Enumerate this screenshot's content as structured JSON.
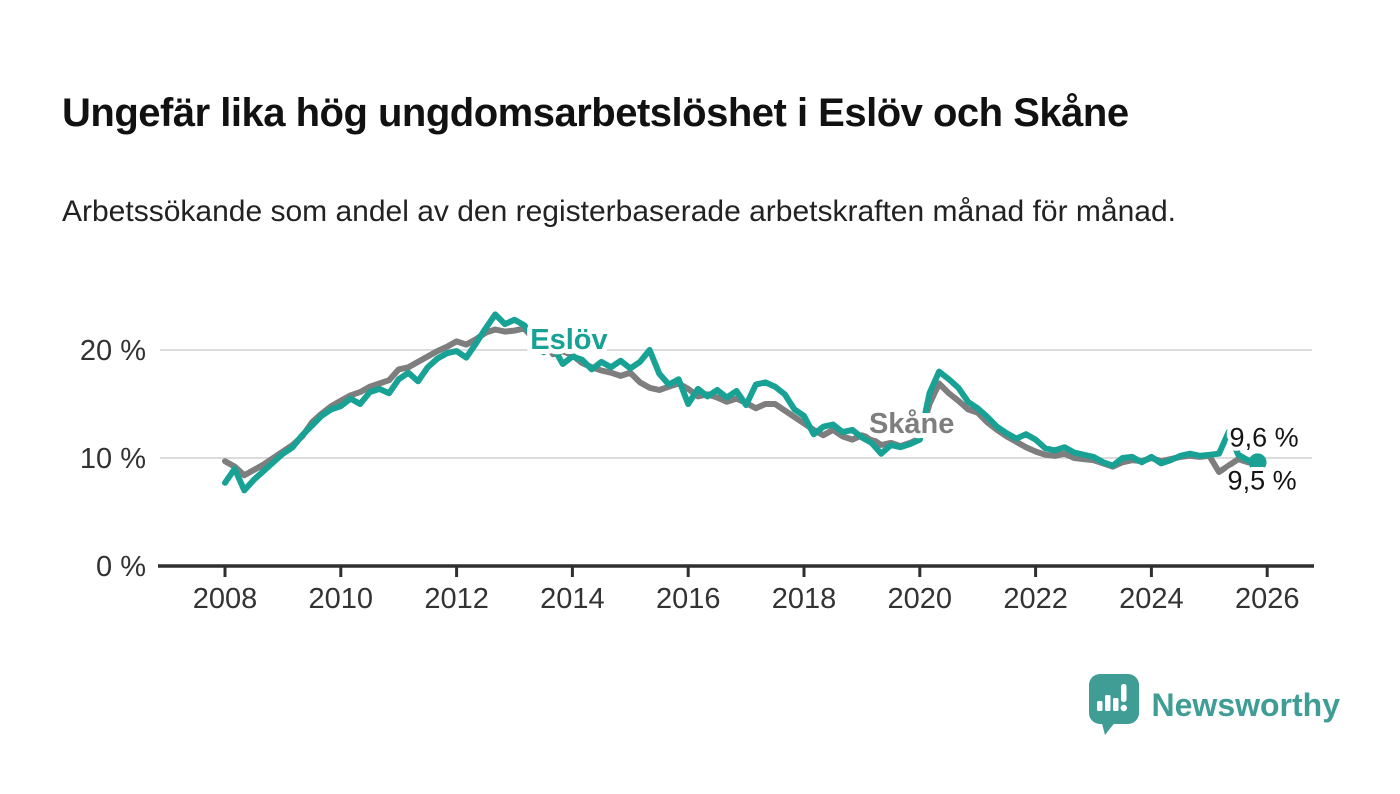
{
  "title": "Ungefär lika hög ungdomsarbetslöshet i Eslöv och Skåne",
  "subtitle": "Arbetssökande som andel av den registerbaserade arbetskraften månad för månad.",
  "footer": {
    "brand": "Newsworthy",
    "logo_icon": "newsworthy-bar-chart-speech-bubble-icon"
  },
  "colors": {
    "eslov": "#18a295",
    "skane": "#7e7e7e",
    "grid": "#dcdcdc",
    "axis": "#2f2f2f",
    "tick_text": "#333333",
    "brand": "#3f9d96"
  },
  "chart_data": {
    "type": "line",
    "x_start": 2008.0,
    "x_step": 0.166667,
    "xlabel": "",
    "ylabel": "",
    "xlim": [
      2006.9,
      2026.8
    ],
    "ylim": [
      0,
      25
    ],
    "grid": "horizontal",
    "xticks": [
      2008,
      2010,
      2012,
      2014,
      2016,
      2018,
      2020,
      2022,
      2024,
      2026
    ],
    "yticks": [
      {
        "value": 0,
        "label": "0 %"
      },
      {
        "value": 10,
        "label": "10 %"
      },
      {
        "value": 20,
        "label": "20 %"
      }
    ],
    "series": [
      {
        "name": "Eslöv",
        "color_key": "eslov",
        "end_label": "9,6 %",
        "end_dot": true,
        "values": [
          7.7,
          9.0,
          7.0,
          8.0,
          8.8,
          9.6,
          10.4,
          11.0,
          12.1,
          13.0,
          13.9,
          14.5,
          14.8,
          15.5,
          15.0,
          16.1,
          16.4,
          16.0,
          17.3,
          17.9,
          17.1,
          18.4,
          19.2,
          19.7,
          19.9,
          19.3,
          20.6,
          22.0,
          23.3,
          22.4,
          22.8,
          22.3,
          21.1,
          19.8,
          20.3,
          18.7,
          19.4,
          19.1,
          18.2,
          18.9,
          18.4,
          19.0,
          18.3,
          18.9,
          20.0,
          17.8,
          16.8,
          17.3,
          15.0,
          16.4,
          15.7,
          16.3,
          15.6,
          16.2,
          14.9,
          16.8,
          17.0,
          16.6,
          15.9,
          14.5,
          13.9,
          12.2,
          12.9,
          13.1,
          12.4,
          12.6,
          11.9,
          11.4,
          10.4,
          11.2,
          11.0,
          11.3,
          11.7,
          16.0,
          18.0,
          17.3,
          16.5,
          15.2,
          14.6,
          13.8,
          12.9,
          12.3,
          11.8,
          12.2,
          11.7,
          10.9,
          10.7,
          11.0,
          10.5,
          10.3,
          10.1,
          9.6,
          9.3,
          10.0,
          10.1,
          9.6,
          10.1,
          9.5,
          9.8,
          10.2,
          10.4,
          10.2,
          10.3,
          10.4,
          12.4,
          10.3,
          9.8,
          9.6
        ]
      },
      {
        "name": "Skåne",
        "color_key": "skane",
        "end_label": "9,5 %",
        "end_dot": false,
        "values": [
          9.7,
          9.2,
          8.4,
          8.9,
          9.4,
          10.0,
          10.6,
          11.2,
          12.0,
          13.3,
          14.1,
          14.8,
          15.3,
          15.8,
          16.1,
          16.6,
          16.9,
          17.2,
          18.2,
          18.4,
          18.9,
          19.4,
          19.9,
          20.3,
          20.8,
          20.5,
          21.0,
          21.6,
          21.9,
          21.7,
          21.8,
          22.0,
          21.0,
          20.9,
          19.6,
          19.9,
          19.5,
          18.8,
          18.4,
          18.1,
          17.9,
          17.6,
          17.9,
          17.0,
          16.5,
          16.3,
          16.6,
          16.9,
          16.4,
          15.7,
          15.9,
          15.6,
          15.2,
          15.5,
          15.1,
          14.6,
          15.0,
          15.0,
          14.4,
          13.8,
          13.2,
          12.6,
          12.1,
          12.6,
          12.0,
          11.7,
          12.1,
          11.8,
          11.2,
          11.4,
          11.1,
          11.4,
          11.8,
          15.0,
          16.9,
          16.0,
          15.3,
          14.5,
          14.2,
          13.3,
          12.6,
          12.0,
          11.5,
          11.0,
          10.6,
          10.3,
          10.2,
          10.4,
          10.0,
          9.9,
          9.8,
          9.5,
          9.2,
          9.6,
          9.8,
          9.7,
          10.0,
          9.7,
          9.9,
          10.1,
          10.2,
          10.1,
          10.2,
          8.7,
          9.3,
          9.9,
          9.6,
          9.5
        ]
      }
    ],
    "annotations": [
      {
        "text": "Eslöv",
        "x": 2013.94,
        "y": 20.1,
        "color_key": "eslov"
      },
      {
        "text": "Skåne",
        "x": 2019.86,
        "y": 12.3,
        "color_key": "skane"
      }
    ]
  }
}
